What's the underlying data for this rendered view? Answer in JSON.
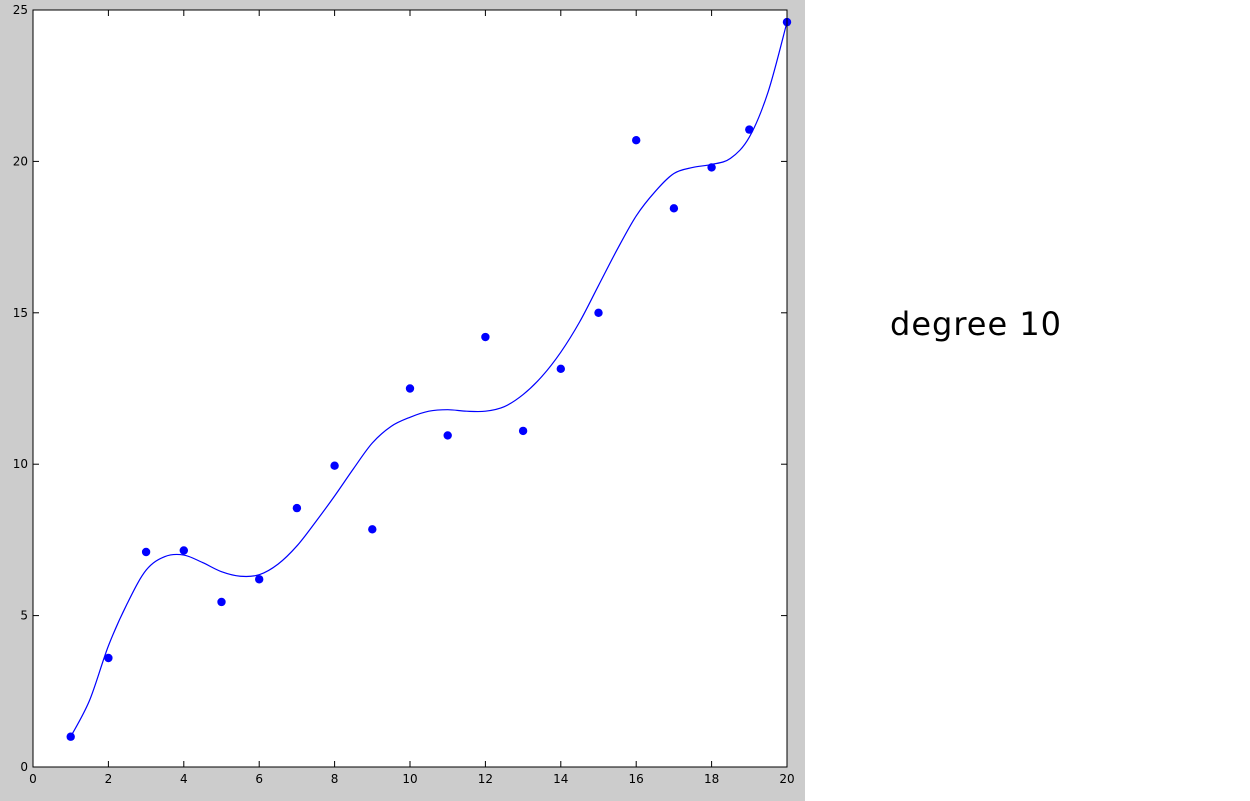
{
  "side_label": "degree 10",
  "colors": {
    "marker": "#0000ff",
    "line": "#0000ff",
    "figure_bg": "#cccccc",
    "axes_bg": "#ffffff"
  },
  "chart_data": {
    "type": "scatter",
    "xlim": [
      0,
      20
    ],
    "ylim": [
      0,
      25
    ],
    "xticks": [
      0,
      2,
      4,
      6,
      8,
      10,
      12,
      14,
      16,
      18,
      20
    ],
    "yticks": [
      0,
      5,
      10,
      15,
      20,
      25
    ],
    "grid": false,
    "points": {
      "x": [
        1,
        2,
        3,
        4,
        5,
        6,
        7,
        8,
        9,
        10,
        11,
        12,
        13,
        14,
        15,
        16,
        17,
        18,
        19,
        20
      ],
      "y": [
        1.0,
        3.6,
        7.1,
        7.15,
        5.45,
        6.2,
        8.55,
        9.95,
        7.85,
        12.5,
        10.95,
        14.2,
        11.1,
        13.15,
        15.0,
        20.7,
        18.45,
        19.8,
        21.05,
        24.6
      ]
    },
    "fit_curve": {
      "x": [
        1,
        1.5,
        2,
        2.5,
        3,
        3.5,
        4,
        4.5,
        5,
        5.5,
        6,
        6.5,
        7,
        7.5,
        8,
        8.5,
        9,
        9.5,
        10,
        10.5,
        11,
        11.5,
        12,
        12.5,
        13,
        13.5,
        14,
        14.5,
        15,
        15.5,
        16,
        16.5,
        17,
        17.5,
        18,
        18.5,
        19,
        19.5,
        20
      ],
      "y": [
        1.0,
        2.2,
        4.0,
        5.4,
        6.5,
        6.95,
        7.0,
        6.75,
        6.45,
        6.3,
        6.35,
        6.7,
        7.3,
        8.1,
        8.95,
        9.85,
        10.7,
        11.25,
        11.55,
        11.75,
        11.8,
        11.75,
        11.75,
        11.9,
        12.3,
        12.9,
        13.7,
        14.7,
        15.9,
        17.1,
        18.2,
        19.0,
        19.6,
        19.8,
        19.9,
        20.1,
        20.8,
        22.3,
        24.6
      ]
    }
  }
}
